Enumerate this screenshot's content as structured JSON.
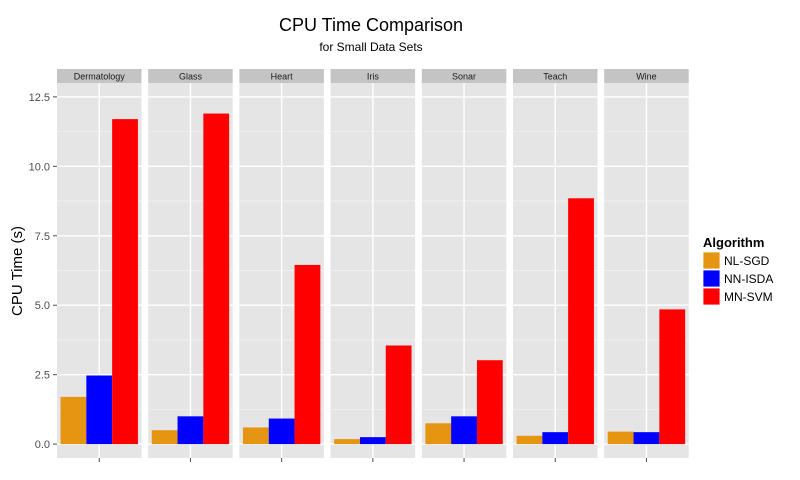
{
  "chart_data": {
    "type": "bar",
    "title": "CPU Time Comparison",
    "subtitle": "for Small Data Sets",
    "ylabel": "CPU Time (s)",
    "xlabel": "",
    "ylim": [
      -0.5,
      13.0
    ],
    "yticks": [
      0.0,
      2.5,
      5.0,
      7.5,
      10.0,
      12.5
    ],
    "ytick_labels": [
      "0.0",
      "2.5",
      "5.0",
      "7.5",
      "10.0",
      "12.5"
    ],
    "grid": true,
    "legend": {
      "title": "Algorithm",
      "placement": "right"
    },
    "facets": [
      "Dermatology",
      "Glass",
      "Heart",
      "Iris",
      "Sonar",
      "Teach",
      "Wine"
    ],
    "series": [
      {
        "name": "NL-SGD",
        "color": "#E69512",
        "values": [
          1.7,
          0.5,
          0.6,
          0.18,
          0.75,
          0.3,
          0.45
        ]
      },
      {
        "name": "NN-ISDA",
        "color": "#0000FF",
        "values": [
          2.47,
          1.0,
          0.92,
          0.25,
          1.0,
          0.43,
          0.43
        ]
      },
      {
        "name": "MN-SVM",
        "color": "#FF0000",
        "values": [
          11.7,
          11.9,
          6.45,
          3.55,
          3.02,
          8.85,
          4.85
        ]
      }
    ]
  }
}
